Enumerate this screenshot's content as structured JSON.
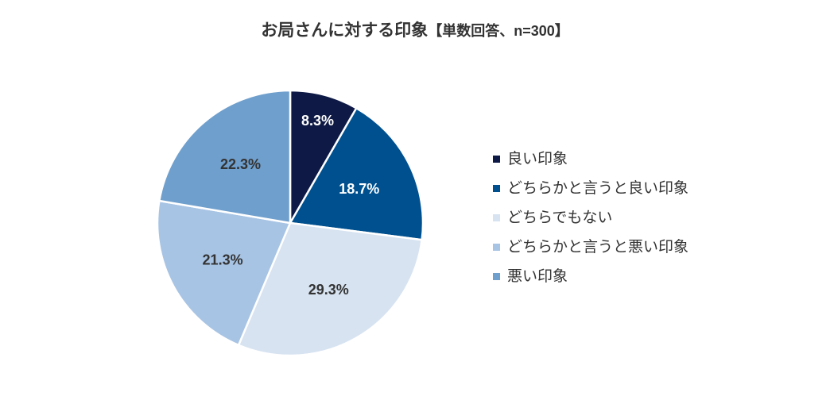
{
  "chart_data": {
    "type": "pie",
    "title": "お局さんに対する印象",
    "subtitle": "【単数回答、n=300】",
    "direction": "clockwise",
    "legend": "right",
    "categories": [
      "良い印象",
      "どちらかと言うと良い印象",
      "どちらでもない",
      "どちらかと言うと悪い印象",
      "悪い印象"
    ],
    "values": [
      8.3,
      18.7,
      29.3,
      21.3,
      22.3
    ],
    "data_labels": [
      "8.3%",
      "18.7%",
      "29.3%",
      "21.3%",
      "22.3%"
    ],
    "colors": [
      "#0e1a45",
      "#00508f",
      "#d7e3f1",
      "#a8c4e4",
      "#6f9fcd"
    ],
    "label_colors": [
      "#ffffff",
      "#ffffff",
      "#333333",
      "#333333",
      "#333333"
    ]
  }
}
